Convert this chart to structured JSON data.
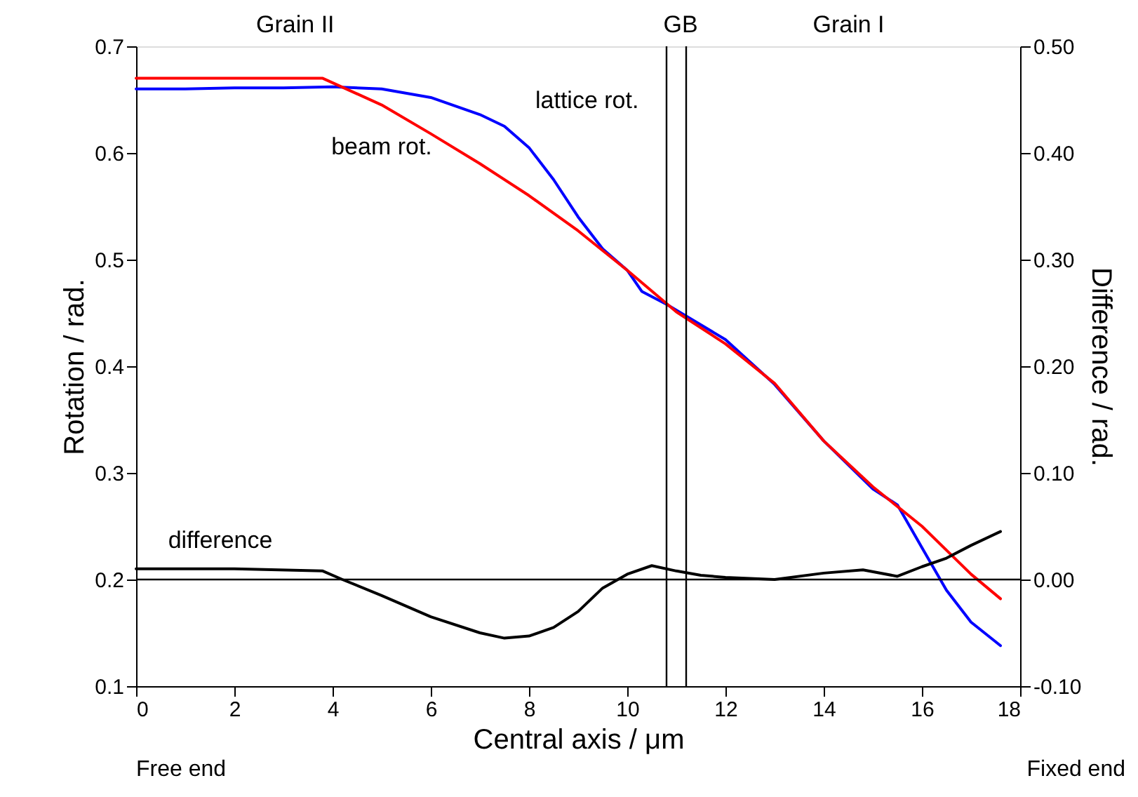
{
  "chart_data": {
    "type": "line",
    "xlabel": "Central axis / μm",
    "ylabel": "Rotation / rad.",
    "y2label": "Difference / rad.",
    "xlim": [
      0,
      18
    ],
    "xticks": [
      0,
      2,
      4,
      6,
      8,
      10,
      12,
      14,
      16,
      18
    ],
    "ylim": [
      0.1,
      0.7
    ],
    "yticks": [
      0.1,
      0.2,
      0.3,
      0.4,
      0.5,
      0.6,
      0.7
    ],
    "y2lim": [
      -0.1,
      0.5
    ],
    "y2ticks": [
      {
        "value": -0.1,
        "label": "-0.10"
      },
      {
        "value": 0,
        "label": "0.00"
      },
      {
        "value": 0.1,
        "label": "0.10"
      },
      {
        "value": 0.2,
        "label": "0.20"
      },
      {
        "value": 0.3,
        "label": "0.30"
      },
      {
        "value": 0.4,
        "label": "0.40"
      },
      {
        "value": 0.5,
        "label": "0.50"
      }
    ],
    "grid": false,
    "marker": "none",
    "line_style": "solid",
    "series": [
      {
        "name": "lattice rot.",
        "color": "#0000ff",
        "x": [
          0,
          1,
          2,
          3,
          4,
          5,
          6,
          7,
          7.5,
          8,
          8.5,
          9,
          9.5,
          10,
          10.3,
          10.8,
          11.2,
          12,
          13,
          14,
          15,
          15.5,
          16,
          16.5,
          17,
          17.6
        ],
        "values": [
          0.66,
          0.66,
          0.661,
          0.661,
          0.662,
          0.66,
          0.652,
          0.636,
          0.625,
          0.605,
          0.575,
          0.54,
          0.51,
          0.49,
          0.47,
          0.458,
          0.447,
          0.425,
          0.383,
          0.33,
          0.285,
          0.27,
          0.23,
          0.19,
          0.16,
          0.138
        ]
      },
      {
        "name": "beam rot.",
        "color": "#ff0000",
        "x": [
          0,
          3.8,
          5,
          6,
          7,
          8,
          9,
          10,
          11,
          12,
          13,
          14,
          15,
          16,
          17,
          17.6
        ],
        "values": [
          0.67,
          0.67,
          0.645,
          0.618,
          0.59,
          0.56,
          0.527,
          0.49,
          0.451,
          0.421,
          0.384,
          0.33,
          0.287,
          0.25,
          0.205,
          0.182
        ]
      },
      {
        "name": "difference",
        "color": "#000000",
        "axis": "y2",
        "x": [
          0,
          2,
          3.8,
          4.2,
          5,
          6,
          7,
          7.5,
          8,
          8.5,
          9,
          9.5,
          10,
          10.5,
          11,
          11.5,
          12,
          13,
          14,
          14.8,
          15.5,
          16,
          16.5,
          17,
          17.6
        ],
        "values": [
          0.01,
          0.01,
          0.008,
          0,
          -0.015,
          -0.035,
          -0.05,
          -0.055,
          -0.053,
          -0.045,
          -0.03,
          -0.008,
          0.005,
          0.013,
          0.008,
          0.004,
          0.002,
          0,
          0.006,
          0.009,
          0.003,
          0.012,
          0.02,
          0.032,
          0.045
        ]
      }
    ],
    "ref_lines": [
      {
        "axis": "x",
        "value": 10.8,
        "color": "#000000"
      },
      {
        "axis": "x",
        "value": 11.2,
        "color": "#000000"
      },
      {
        "axis": "y2",
        "value": 0,
        "color": "#000000"
      }
    ],
    "annotations": [
      "Grain II",
      "GB",
      "Grain I",
      "Free end",
      "Fixed end"
    ]
  }
}
